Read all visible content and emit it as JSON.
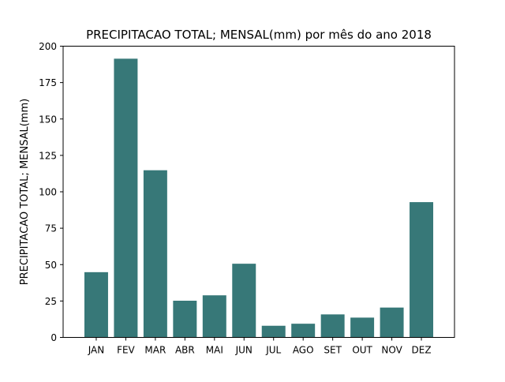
{
  "chart_data": {
    "type": "bar",
    "title": "PRECIPITACAO TOTAL; MENSAL(mm) por mês do ano 2018",
    "xlabel": "",
    "ylabel": "PRECIPITACAO TOTAL; MENSAL(mm)",
    "categories": [
      "JAN",
      "FEV",
      "MAR",
      "ABR",
      "MAI",
      "JUN",
      "JUL",
      "AGO",
      "SET",
      "OUT",
      "NOV",
      "DEZ"
    ],
    "values": [
      44.8,
      191.4,
      114.8,
      25.2,
      28.9,
      50.6,
      8.0,
      9.4,
      15.8,
      13.6,
      20.5,
      92.9
    ],
    "ylim": [
      0,
      200
    ],
    "yticks": [
      0,
      25,
      50,
      75,
      100,
      125,
      150,
      175,
      200
    ],
    "grid": false,
    "legend": "none",
    "bar_color": "#377878"
  }
}
